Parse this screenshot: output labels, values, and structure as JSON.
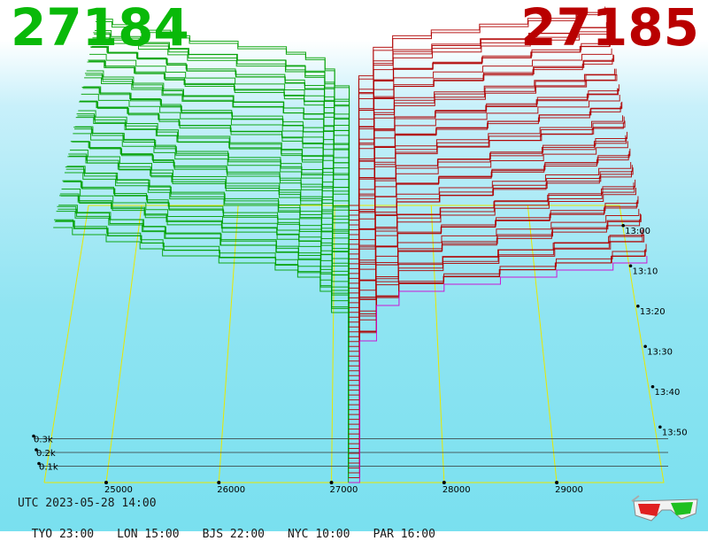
{
  "header": {
    "bid_price": "27184",
    "ask_price": "27185",
    "bid_color": "#09b909",
    "ask_color": "#b90000"
  },
  "footer": {
    "utc_time": "UTC 2023-05-28 14:00",
    "zones": [
      {
        "label": "TYO 23:00"
      },
      {
        "label": "LON 15:00"
      },
      {
        "label": "BJS 22:00"
      },
      {
        "label": "NYC 10:00"
      },
      {
        "label": "PAR 16:00"
      }
    ]
  },
  "chart_data": {
    "type": "area",
    "title": "",
    "x_axis": {
      "label": "",
      "ticks": [
        "25000",
        "26000",
        "27000",
        "28000",
        "29000"
      ],
      "range": [
        24450,
        29950
      ]
    },
    "volume_axis": {
      "ticks": [
        "0.1k",
        "0.2k",
        "0.3k"
      ],
      "max": 0.35
    },
    "time_axis": {
      "ticks": [
        "13:00",
        "13:10",
        "13:20",
        "13:30",
        "13:40",
        "13:50"
      ]
    },
    "series": [
      {
        "color": "#00a000",
        "x": [
          24530,
          24700,
          25000,
          25300,
          25500,
          26000,
          26500,
          26700,
          26900,
          27000,
          27150
        ],
        "y": [
          0.36,
          0.35,
          0.34,
          0.33,
          0.32,
          0.31,
          0.3,
          0.29,
          0.27,
          0.24,
          0.0
        ]
      },
      {
        "color": "#b00000",
        "x": [
          27150,
          27250,
          27400,
          27600,
          28000,
          28500,
          29000,
          29500,
          29800
        ],
        "y": [
          0.0,
          0.2,
          0.25,
          0.27,
          0.28,
          0.29,
          0.3,
          0.31,
          0.32
        ]
      }
    ],
    "snapshots": 58,
    "grid": true,
    "colors": {
      "frame": "#e8e800",
      "latest_line": "#d000d0"
    }
  }
}
